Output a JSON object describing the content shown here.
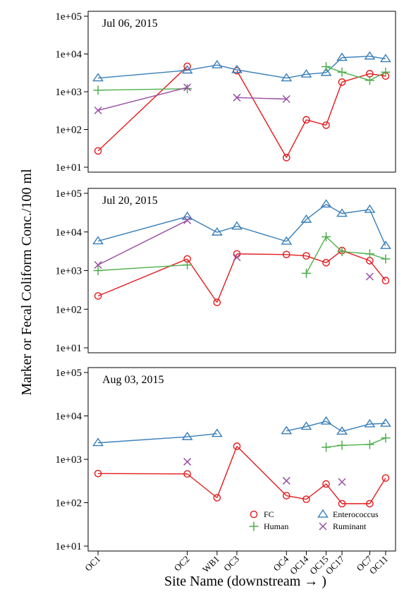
{
  "figure": {
    "ylabel": "Marker or Fecal Coliform Conc./100 ml",
    "xlabel": "Site Name (downstream → )"
  },
  "chart_data": {
    "type": "line",
    "x_positions": [
      1,
      2,
      3,
      4,
      5,
      6,
      7,
      8,
      9,
      10
    ],
    "sites": [
      "OC1",
      "OC2",
      "WB1",
      "OC3",
      "OC4",
      "OC14",
      "OC15",
      "OC17",
      "OC7",
      "OC11"
    ],
    "site_positions": [
      0,
      4.5,
      6.0,
      7.0,
      9.5,
      10.5,
      11.5,
      12.3,
      13.7,
      14.5
    ],
    "yscale": "log10",
    "ylim": [
      10,
      100000
    ],
    "yticks": [
      10,
      100,
      1000,
      10000,
      100000
    ],
    "ytick_labels": [
      "1e+01",
      "1e+02",
      "1e+03",
      "1e+04",
      "1e+05"
    ],
    "series_styles": {
      "FC": {
        "color": "#e41a1c",
        "marker": "circle"
      },
      "Enterococcus": {
        "color": "#377eb8",
        "marker": "triangle"
      },
      "Human": {
        "color": "#4daf4a",
        "marker": "plus"
      },
      "Ruminant": {
        "color": "#984ea3",
        "marker": "cross"
      }
    },
    "legend": {
      "placement": "bottom-right",
      "panel": 2,
      "entries": [
        "FC",
        "Enterococcus",
        "Human",
        "Ruminant"
      ]
    },
    "panels": [
      {
        "title": "Jul 06, 2015",
        "series": [
          {
            "name": "FC",
            "values": [
              27,
              4700,
              null,
              3600,
              18,
              180,
              130,
              1800,
              3000,
              2600
            ]
          },
          {
            "name": "Enterococcus",
            "values": [
              2300,
              3700,
              5100,
              3800,
              2300,
              2900,
              3200,
              8000,
              8700,
              7400
            ]
          },
          {
            "name": "Human",
            "values": [
              1100,
              1200,
              null,
              null,
              null,
              null,
              4600,
              3300,
              2000,
              3300
            ]
          },
          {
            "name": "Ruminant",
            "values": [
              320,
              1300,
              null,
              700,
              640,
              null,
              null,
              null,
              null,
              null
            ]
          }
        ]
      },
      {
        "title": "Jul 20, 2015",
        "series": [
          {
            "name": "FC",
            "values": [
              220,
              2000,
              150,
              2700,
              2600,
              2400,
              1600,
              3300,
              1800,
              550
            ]
          },
          {
            "name": "Enterococcus",
            "values": [
              5800,
              25000,
              9800,
              14000,
              5700,
              21000,
              52000,
              30000,
              38000,
              4400
            ]
          },
          {
            "name": "Human",
            "values": [
              1000,
              1400,
              null,
              null,
              null,
              850,
              7500,
              3100,
              2700,
              2000
            ]
          },
          {
            "name": "Ruminant",
            "values": [
              1400,
              20000,
              null,
              2200,
              null,
              null,
              null,
              null,
              700,
              null
            ]
          }
        ]
      },
      {
        "title": "Aug 03, 2015",
        "series": [
          {
            "name": "FC",
            "values": [
              470,
              460,
              130,
              2000,
              145,
              120,
              270,
              95,
              95,
              370
            ]
          },
          {
            "name": "Enterococcus",
            "values": [
              2400,
              3300,
              3900,
              null,
              4500,
              5700,
              7500,
              4400,
              6500,
              6700
            ]
          },
          {
            "name": "Human",
            "values": [
              null,
              null,
              null,
              null,
              null,
              null,
              1900,
              2100,
              2200,
              3100
            ]
          },
          {
            "name": "Ruminant",
            "values": [
              null,
              880,
              null,
              null,
              320,
              null,
              null,
              300,
              null,
              null
            ]
          }
        ]
      }
    ]
  }
}
